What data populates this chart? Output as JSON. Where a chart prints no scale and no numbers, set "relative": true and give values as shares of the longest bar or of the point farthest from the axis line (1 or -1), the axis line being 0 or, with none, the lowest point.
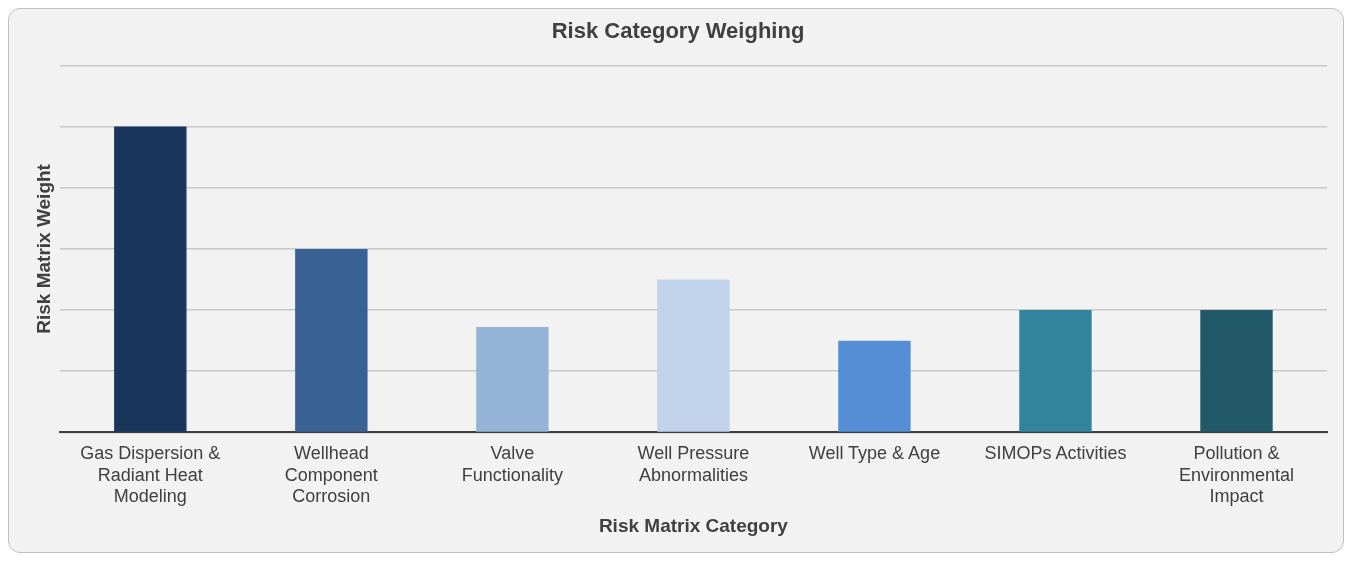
{
  "chart_data": {
    "type": "bar",
    "title": "Risk Category Weighing",
    "xlabel": "Risk Matrix Category",
    "ylabel": "Risk Matrix Weight",
    "categories": [
      "Gas Dispersion & Radiant Heat Modeling",
      "Wellhead Component Corrosion",
      "Valve Functionality",
      "Well Pressure Abnormalities",
      "Well Type & Age",
      "SIMOPs Activities",
      "Pollution & Environmental Impact"
    ],
    "values": [
      1,
      0.6,
      0.345,
      0.5,
      0.3,
      0.4,
      0.4
    ],
    "colors": [
      "#1b365d",
      "#3a6194",
      "#95b3d7",
      "#c0d3ea",
      "#558ed5",
      "#31849b",
      "#215968"
    ],
    "relative": true,
    "grid": "y",
    "legend": false
  }
}
